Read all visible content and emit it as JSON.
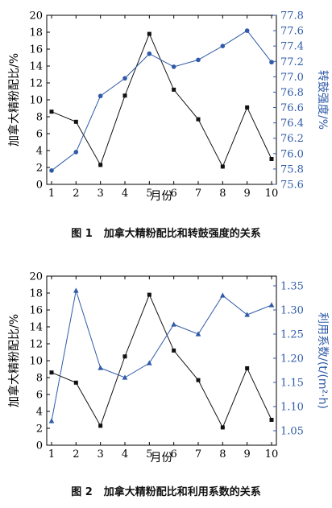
{
  "colors": {
    "left": "#111111",
    "right": "#2f5aa8",
    "frame": "#000000"
  },
  "figures": [
    {
      "caption_num": "图 1",
      "caption_text": "加拿大精粉配比和转鼓强度的关系",
      "xlabel": "月份",
      "ylabel_left": "加拿大精粉配比/%",
      "ylabel_right": "转鼓强度/%"
    },
    {
      "caption_num": "图 2",
      "caption_text": "加拿大精粉配比和利用系数的关系",
      "xlabel": "月份",
      "ylabel_left": "加拿大精粉配比/%",
      "ylabel_right": "利用系数/(t/(m²·h)"
    }
  ],
  "chart_data": [
    {
      "type": "line",
      "x": [
        1,
        2,
        3,
        4,
        5,
        6,
        7,
        8,
        9,
        10
      ],
      "xlim": [
        1,
        10
      ],
      "y_left_lim": [
        0,
        20
      ],
      "y_left_ticks": [
        0,
        2,
        4,
        6,
        8,
        10,
        12,
        14,
        16,
        18,
        20
      ],
      "y_right_lim": [
        75.6,
        77.8
      ],
      "y_right_ticks": [
        75.6,
        75.8,
        76.0,
        76.2,
        76.4,
        76.6,
        76.8,
        77.0,
        77.2,
        77.4,
        77.6,
        77.8
      ],
      "series": [
        {
          "axis": "left",
          "marker": "square",
          "values": [
            8.6,
            7.4,
            2.3,
            10.5,
            17.8,
            11.2,
            7.7,
            2.1,
            9.1,
            3.0
          ]
        },
        {
          "axis": "right",
          "marker": "circle",
          "values": [
            75.78,
            76.02,
            76.75,
            76.98,
            77.3,
            77.13,
            77.22,
            77.4,
            77.6,
            77.19
          ]
        }
      ]
    },
    {
      "type": "line",
      "x": [
        1,
        2,
        3,
        4,
        5,
        6,
        7,
        8,
        9,
        10
      ],
      "xlim": [
        1,
        10
      ],
      "y_left_lim": [
        0,
        20
      ],
      "y_left_ticks": [
        0,
        2,
        4,
        6,
        8,
        10,
        12,
        14,
        16,
        18,
        20
      ],
      "y_right_lim": [
        1.02,
        1.37
      ],
      "y_right_ticks": [
        1.05,
        1.1,
        1.15,
        1.2,
        1.25,
        1.3,
        1.35
      ],
      "series": [
        {
          "axis": "left",
          "marker": "square",
          "values": [
            8.6,
            7.4,
            2.3,
            10.5,
            17.8,
            11.2,
            7.7,
            2.1,
            9.1,
            3.0
          ]
        },
        {
          "axis": "right",
          "marker": "triangle",
          "values": [
            1.07,
            1.34,
            1.18,
            1.16,
            1.19,
            1.27,
            1.25,
            1.33,
            1.29,
            1.31
          ]
        }
      ]
    }
  ]
}
